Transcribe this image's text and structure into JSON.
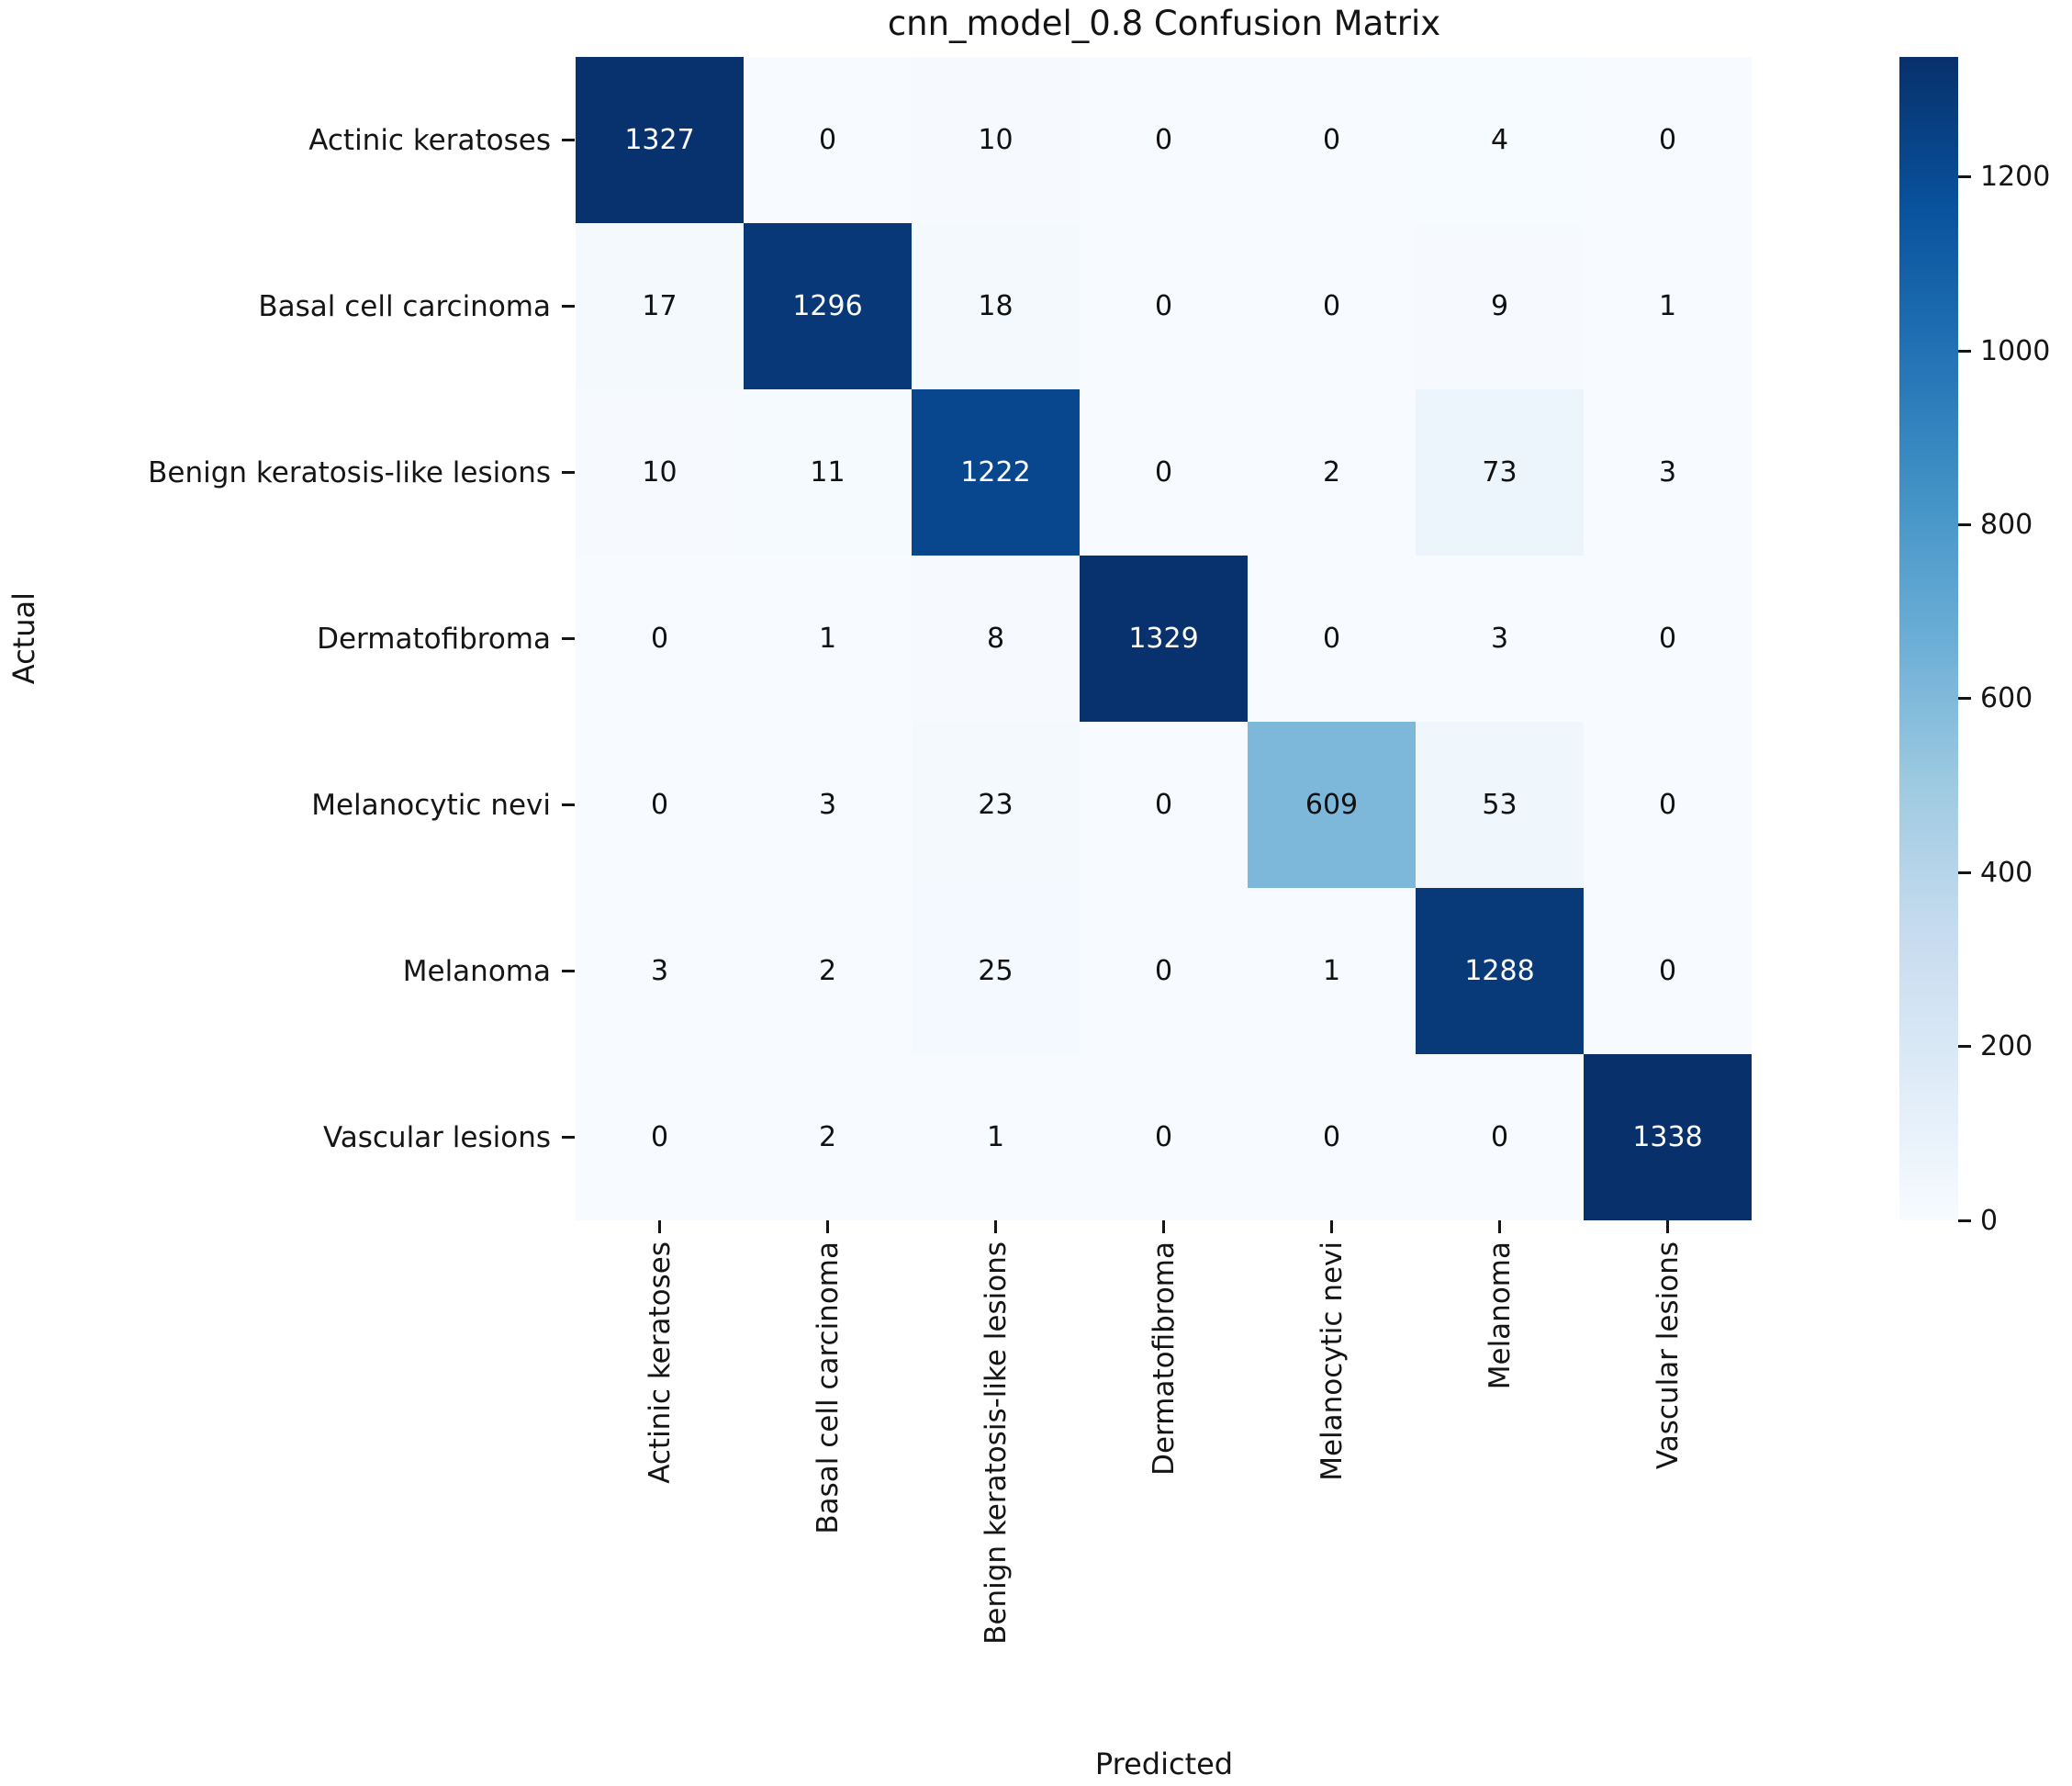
{
  "figure": {
    "background_color": "#ffffff",
    "text_color": "#151515"
  },
  "chart_data": {
    "type": "heatmap",
    "title": "cnn_model_0.8 Confusion Matrix",
    "xlabel": "Predicted",
    "ylabel": "Actual",
    "categories": [
      "Actinic keratoses",
      "Basal cell carcinoma",
      "Benign keratosis-like lesions",
      "Dermatofibroma",
      "Melanocytic nevi",
      "Melanoma",
      "Vascular lesions"
    ],
    "matrix": [
      [
        1327,
        0,
        10,
        0,
        0,
        4,
        0
      ],
      [
        17,
        1296,
        18,
        0,
        0,
        9,
        1
      ],
      [
        10,
        11,
        1222,
        0,
        2,
        73,
        3
      ],
      [
        0,
        1,
        8,
        1329,
        0,
        3,
        0
      ],
      [
        0,
        3,
        23,
        0,
        609,
        53,
        0
      ],
      [
        3,
        2,
        25,
        0,
        1,
        1288,
        0
      ],
      [
        0,
        2,
        1,
        0,
        0,
        0,
        1338
      ]
    ],
    "vmin": 0,
    "vmax": 1338,
    "colorbar_ticks": [
      0,
      200,
      400,
      600,
      800,
      1000,
      1200
    ],
    "colormap": {
      "name": "Blues",
      "stops": [
        "#f7fbff",
        "#deebf7",
        "#c6dbef",
        "#9ecae1",
        "#6baed6",
        "#4292c6",
        "#2171b5",
        "#08519c",
        "#08306b"
      ]
    },
    "annotation_colors": {
      "light_cells_text": "#111111",
      "dark_cells_text": "#ffffff"
    },
    "legend_position": "right-colorbar",
    "grid": false
  }
}
